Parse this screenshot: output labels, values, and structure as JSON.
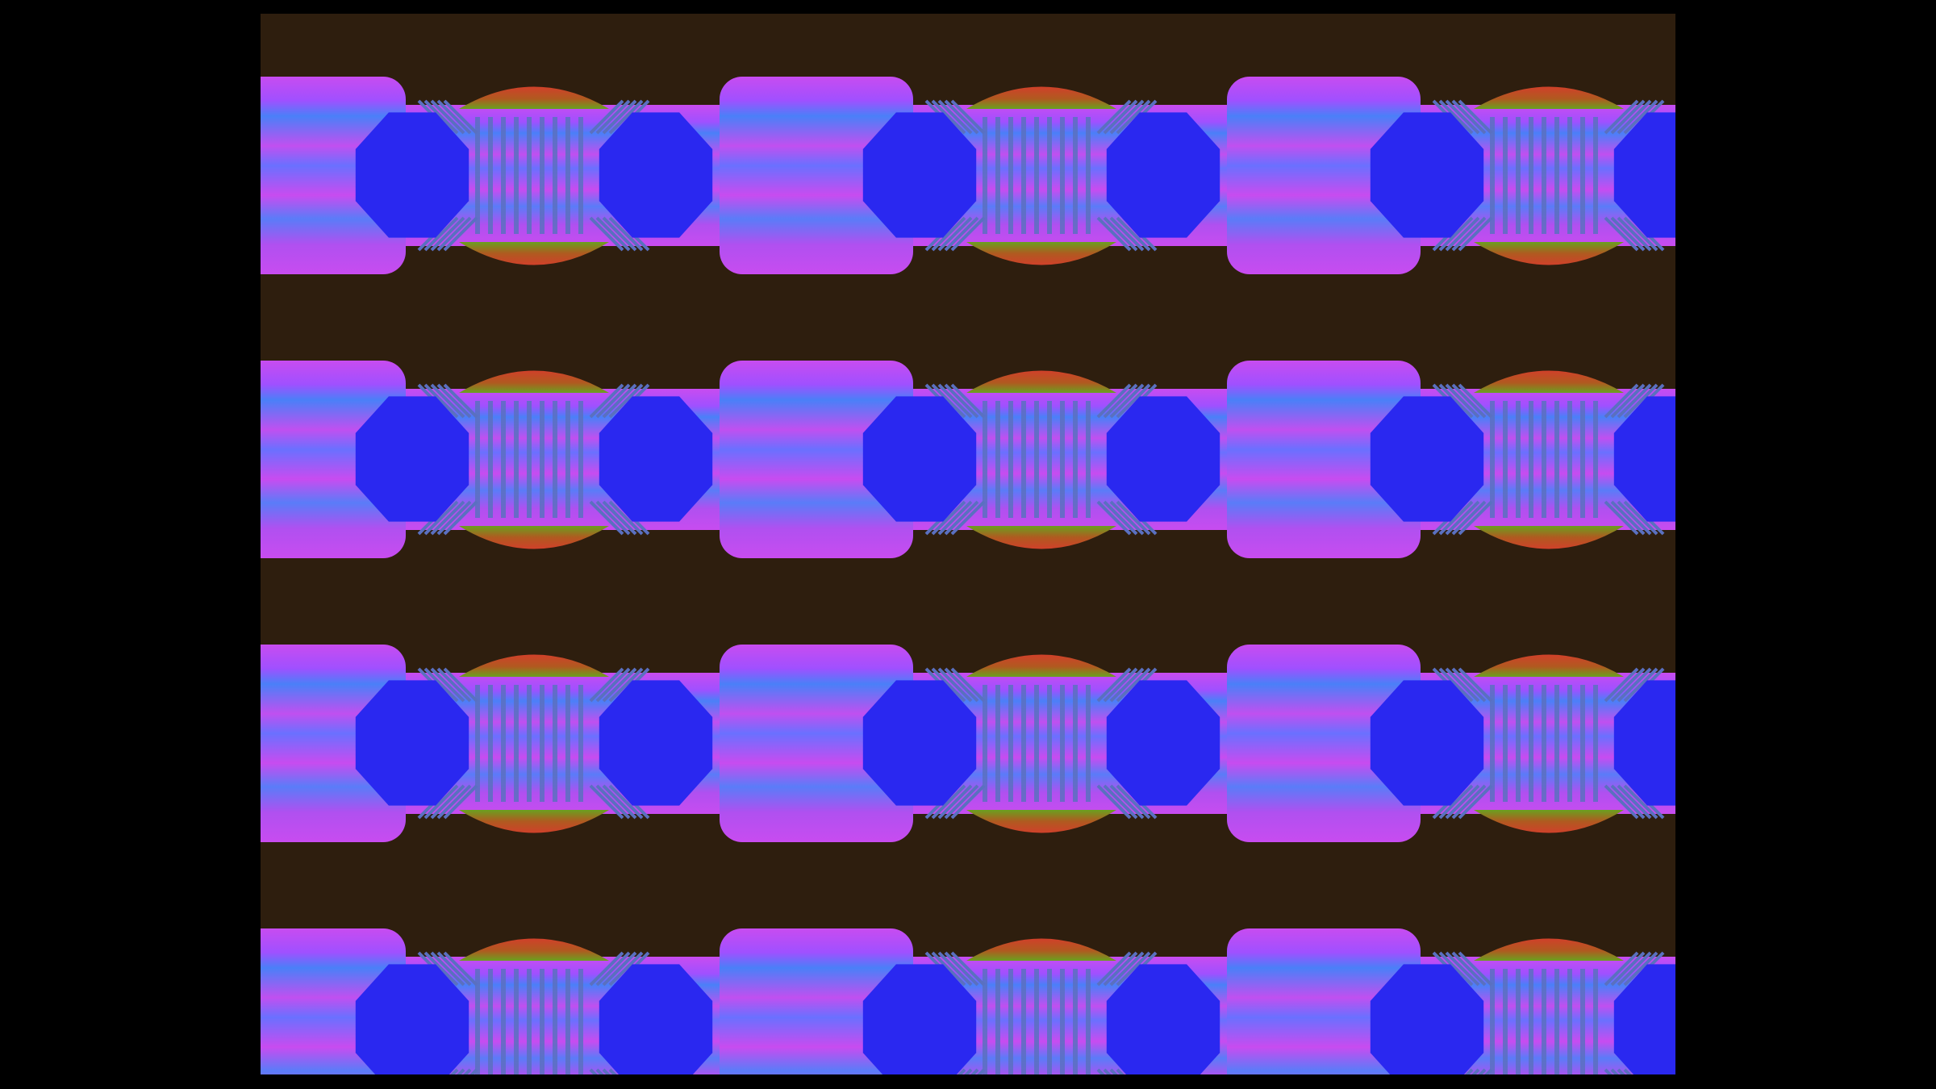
{
  "scene": {
    "description_type": "video-frame",
    "rows": 4,
    "columns": 3,
    "colors": {
      "letterbox": "#000000",
      "background": "#2e1e0e",
      "magenta": "#c84cf0",
      "violet": "#8a5cff",
      "blue": "#2a28f0",
      "red": "#d0402a",
      "green": "#6aa020",
      "stripe": "#5a70c0"
    }
  }
}
